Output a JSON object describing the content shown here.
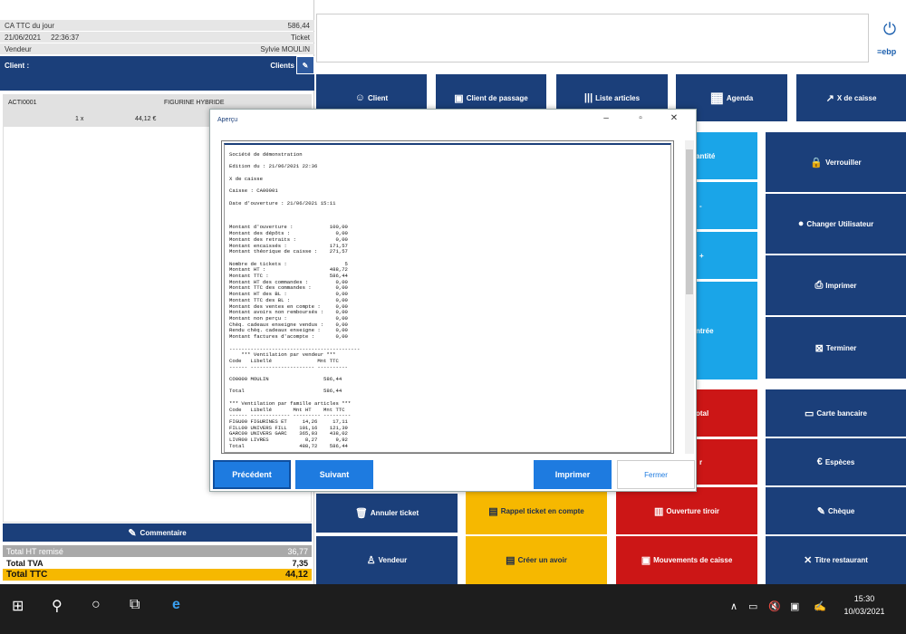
{
  "left_panel": {
    "ca_label": "CA TTC du jour",
    "ca_value": "586,44",
    "date": "21/06/2021",
    "time": "22:36:37",
    "ticket_label": "Ticket",
    "vendeur_label": "Vendeur",
    "vendeur_name": "Sylvie MOULIN",
    "client_label": "Client :",
    "clients_button": "Clients",
    "line": {
      "code": "ACTI0001",
      "name": "FIGURINE HYBRIDE",
      "qty": "1 x",
      "price": "44,12 €"
    },
    "commentaire": "Commentaire",
    "totals": [
      {
        "label": "Total HT remisé",
        "value": "36,77"
      },
      {
        "label": "Total TVA",
        "value": "7,35"
      },
      {
        "label": "Total TTC",
        "value": "44,12"
      }
    ]
  },
  "brand": "ebp",
  "top_buttons": [
    "Client",
    "Client de passage",
    "Liste articles",
    "Agenda",
    "X de caisse"
  ],
  "right_buttons": [
    "Verrouiller",
    "Changer Utilisateur",
    "Imprimer",
    "Terminer",
    "Carte bancaire",
    "Espèces",
    "Chèque",
    "Titre restaurant"
  ],
  "partial_buttons": [
    "antité",
    "-",
    "+",
    "ntrée",
    "otal",
    "r"
  ],
  "bottom_buttons": {
    "annuler": "Annuler ticket",
    "rappel": "Rappel ticket en compte",
    "tiroir": "Ouverture tiroir",
    "vendeur": "Vendeur",
    "avoir": "Créer un avoir",
    "mouvements": "Mouvements de caisse"
  },
  "dialog": {
    "title": "Aperçu",
    "report": "Société de démonstration\n\nEdition du : 21/06/2021 22:36\n\nX de caisse\n\nCaisse : CA00001\n\nDate d'ouverture : 21/06/2021 15:11\n\n\n\nMontant d'ouverture :            100,00\nMontant des dépôts :               0,00\nMontant des retraits :             0,00\nMontant encaissés :              171,57\nMontant théorique de caisse :    271,57\n\nNombre de tickets :                   5\nMontant HT :                     488,72\nMontant TTC :                    586,44\nMontant HT des commandes :         0,00\nMontant TTC des commandes :        0,00\nMontant HT des BL :                0,00\nMontant TTC des BL :               0,00\nMontant des ventes en compte :     0,00\nMontant avoirs non remboursés :    0,00\nMontant non perçu :                0,00\nChèq. cadeaux enseigne vendus :    0,00\nRendu chèq. cadeaux enseigne :     0,00\nMontant factures d'acompte :       0,00\n\n-------------------------------------------\n    *** Ventilation par vendeur ***\nCode   Libellé               Mnt TTC\n------ --------------------- ----------\n\nCO0000 MOULIN                  586,44\n\nTotal                          586,44\n\n*** Ventilation par famille articles ***\nCode   Libellé       Mnt HT    Mnt TTC\n------ ------------- --------- ---------\nFIGU00 FIGURINES ET     14,26     17,11\nFILL00 UNIVERS FILL    101,16    121,39\nGARC00 UNIVERS GARC    365,03    438,02\nLIVR00 LIVRES            8,27      9,92\nTotal                  488,72    586,44",
    "prev": "Précédent",
    "next": "Suivant",
    "print": "Imprimer",
    "close": "Fermer"
  },
  "taskbar": {
    "time": "15:30",
    "date": "10/03/2021"
  },
  "colors": {
    "dark_blue": "#1b3f7a",
    "light_blue": "#1aa5e8",
    "red": "#cc1616",
    "yellow": "#f6b800"
  }
}
